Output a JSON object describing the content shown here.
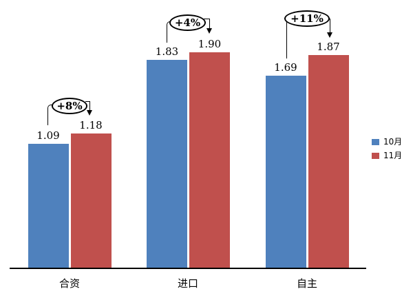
{
  "chart_data": {
    "type": "bar",
    "categories": [
      "合资",
      "进口",
      "自主"
    ],
    "series": [
      {
        "name": "10月",
        "color": "#4F81BD",
        "values": [
          1.09,
          1.83,
          1.69
        ]
      },
      {
        "name": "11月",
        "color": "#C0504D",
        "values": [
          1.18,
          1.9,
          1.87
        ]
      }
    ],
    "value_labels": [
      [
        "1.09",
        "1.83",
        "1.69"
      ],
      [
        "1.18",
        "1.90",
        "1.87"
      ]
    ],
    "annotations": [
      {
        "category": "合资",
        "label": "+8%"
      },
      {
        "category": "进口",
        "label": "+4%"
      },
      {
        "category": "自主",
        "label": "+11%"
      }
    ],
    "title": "",
    "xlabel": "",
    "ylabel": "",
    "ylim": [
      0,
      2.36
    ],
    "grid": false,
    "legend_position": "right",
    "axis_color": "#000000",
    "text_color": "#000000",
    "background": "#FFFFFF"
  }
}
